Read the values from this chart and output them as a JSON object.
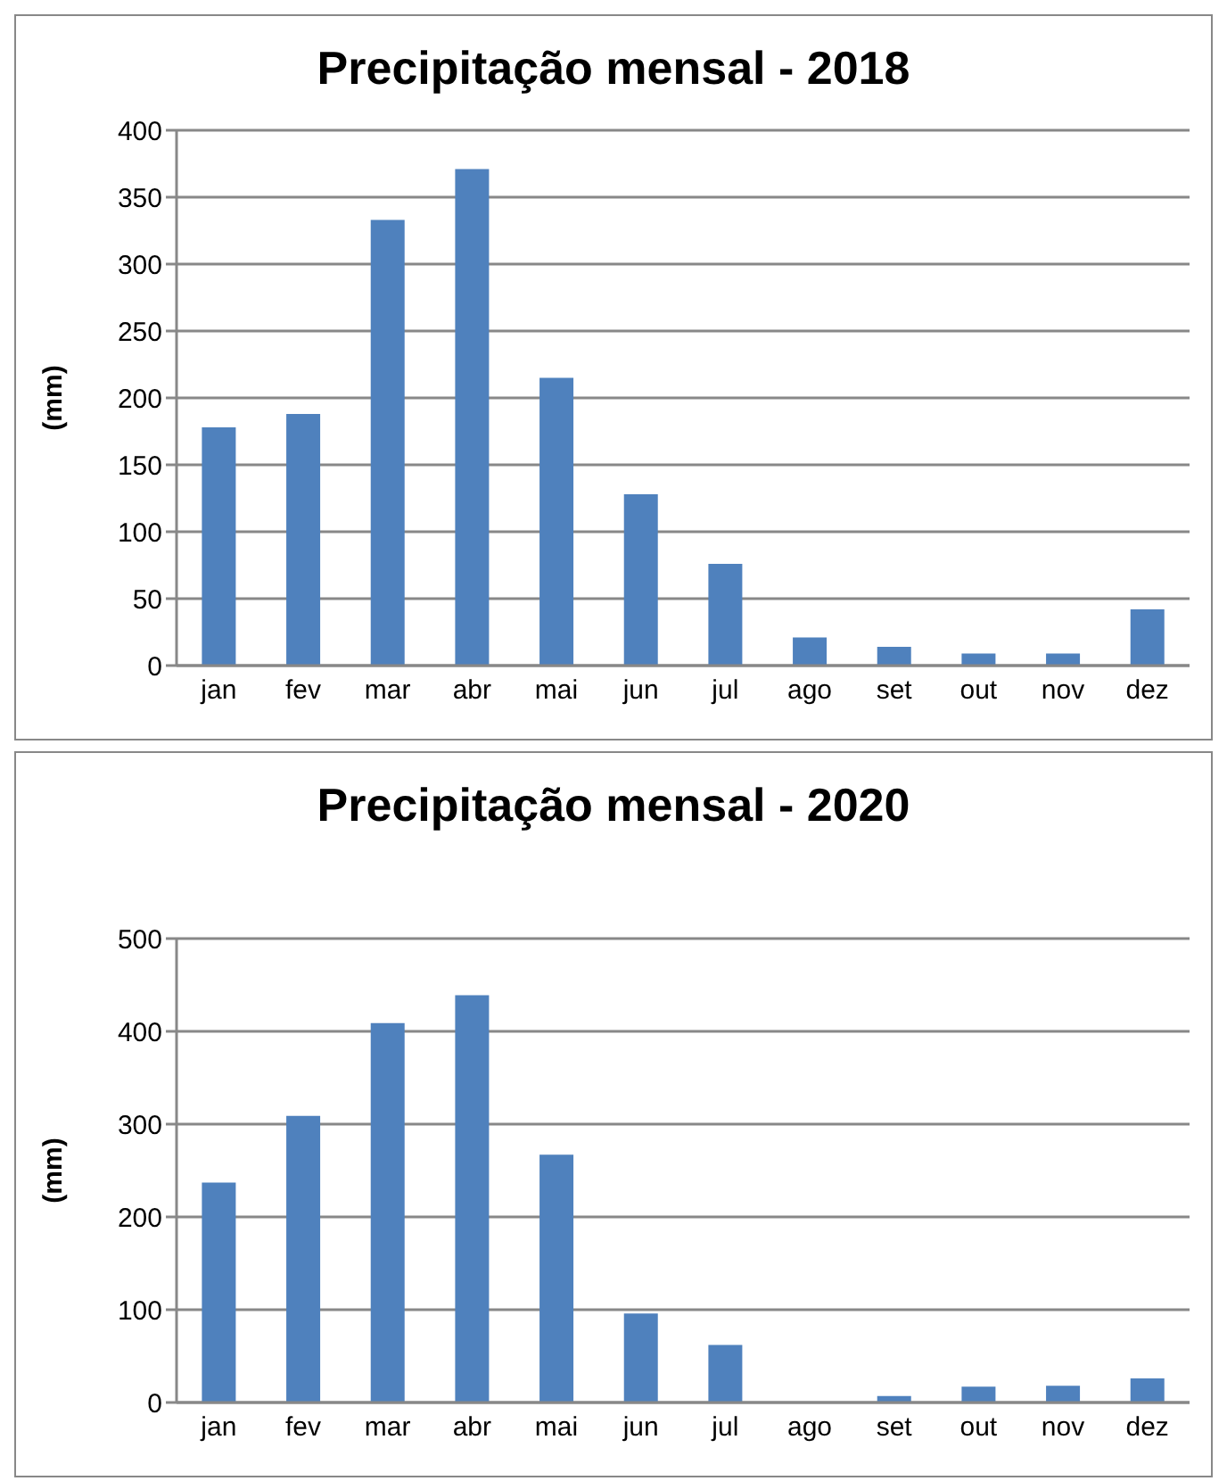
{
  "chart_data": [
    {
      "type": "bar",
      "title": "Precipitação mensal - 2018",
      "ylabel": "(mm)",
      "categories": [
        "jan",
        "fev",
        "mar",
        "abr",
        "mai",
        "jun",
        "jul",
        "ago",
        "set",
        "out",
        "nov",
        "dez"
      ],
      "values": [
        178,
        188,
        333,
        371,
        215,
        128,
        76,
        21,
        14,
        9,
        9,
        42
      ],
      "color": "#4f81bd",
      "ylim": [
        0,
        400
      ],
      "yticks": [
        0,
        50,
        100,
        150,
        200,
        250,
        300,
        350,
        400
      ],
      "grid": "y",
      "legend": false
    },
    {
      "type": "bar",
      "title": "Precipitação mensal - 2020",
      "ylabel": "(mm)",
      "categories": [
        "jan",
        "fev",
        "mar",
        "abr",
        "mai",
        "jun",
        "jul",
        "ago",
        "set",
        "out",
        "nov",
        "dez"
      ],
      "values": [
        237,
        309,
        409,
        439,
        267,
        96,
        62,
        0,
        7,
        17,
        18,
        26
      ],
      "color": "#4f81bd",
      "ylim": [
        0,
        500
      ],
      "yticks": [
        0,
        100,
        200,
        300,
        400,
        500
      ],
      "grid": "y",
      "legend": false
    }
  ]
}
